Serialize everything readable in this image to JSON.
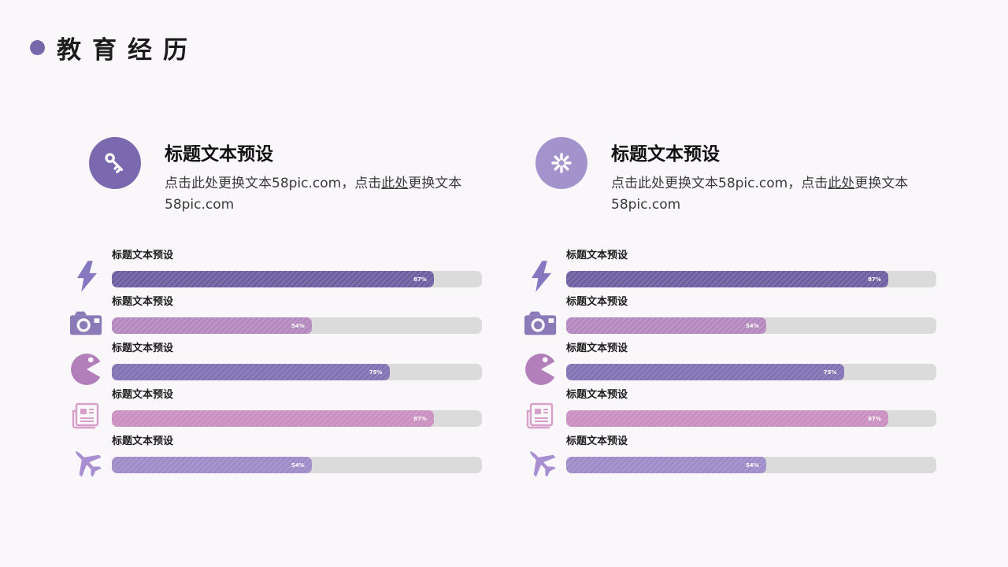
{
  "page": {
    "title": "教育经历"
  },
  "theme": {
    "background": "#faf7fa",
    "accent": "#7568ab",
    "track_color": "#dcdbdc",
    "percent_text_color": "#ffffff"
  },
  "columns": [
    {
      "header": {
        "icon": "key-icon",
        "circle_color": "#7b69af",
        "title": "标题文本预设",
        "desc_part1": "点击此处更换文本58pic.com，点击",
        "desc_link": "此处",
        "desc_part2": "更换文本58pic.com"
      },
      "bars": [
        {
          "icon": "lightning-icon",
          "label": "标题文本预设",
          "percent": 87,
          "color_a": "#6a5e9e",
          "color_b": "#7c70ad",
          "icon_color": "#8677c1"
        },
        {
          "icon": "camera-icon",
          "label": "标题文本预设",
          "percent": 54,
          "color_a": "#b287bd",
          "color_b": "#bd95c6",
          "icon_color": "#8a7bb8"
        },
        {
          "icon": "pacman-icon",
          "label": "标题文本预设",
          "percent": 75,
          "color_a": "#8072b3",
          "color_b": "#8d80bd",
          "icon_color": "#b27fba"
        },
        {
          "icon": "newspaper-icon",
          "label": "标题文本预设",
          "percent": 87,
          "color_a": "#d09ac7",
          "color_b": "#c98fc0",
          "icon_color": "#d89fc8"
        },
        {
          "icon": "plane-icon",
          "label": "标题文本预设",
          "percent": 54,
          "color_a": "#9d8bc7",
          "color_b": "#a897cf",
          "icon_color": "#a88fd2"
        }
      ]
    },
    {
      "header": {
        "icon": "spinner-icon",
        "circle_color": "#a393cd",
        "title": "标题文本预设",
        "desc_part1": "点击此处更换文本58pic.com，点击",
        "desc_link": "此处",
        "desc_part2": "更换文本58pic.com"
      },
      "bars": [
        {
          "icon": "lightning-icon",
          "label": "标题文本预设",
          "percent": 87,
          "color_a": "#6a5e9e",
          "color_b": "#7c70ad",
          "icon_color": "#8677c1"
        },
        {
          "icon": "camera-icon",
          "label": "标题文本预设",
          "percent": 54,
          "color_a": "#b287bd",
          "color_b": "#bd95c6",
          "icon_color": "#8a7bb8"
        },
        {
          "icon": "pacman-icon",
          "label": "标题文本预设",
          "percent": 75,
          "color_a": "#8072b3",
          "color_b": "#8d80bd",
          "icon_color": "#b27fba"
        },
        {
          "icon": "newspaper-icon",
          "label": "标题文本预设",
          "percent": 87,
          "color_a": "#d09ac7",
          "color_b": "#c98fc0",
          "icon_color": "#d89fc8"
        },
        {
          "icon": "plane-icon",
          "label": "标题文本预设",
          "percent": 54,
          "color_a": "#9d8bc7",
          "color_b": "#a897cf",
          "icon_color": "#a88fd2"
        }
      ]
    }
  ],
  "chart_data": [
    {
      "type": "bar",
      "title": "左栏进度条 (left column progress bars)",
      "categories": [
        "标题文本预设",
        "标题文本预设",
        "标题文本预设",
        "标题文本预设",
        "标题文本预设"
      ],
      "values": [
        87,
        54,
        75,
        87,
        54
      ],
      "unit": "%",
      "xlabel": "",
      "ylabel": "",
      "xlim": [
        0,
        100
      ],
      "legend_position": "none",
      "grid": false
    },
    {
      "type": "bar",
      "title": "右栏进度条 (right column progress bars)",
      "categories": [
        "标题文本预设",
        "标题文本预设",
        "标题文本预设",
        "标题文本预设",
        "标题文本预设"
      ],
      "values": [
        87,
        54,
        75,
        87,
        54
      ],
      "unit": "%",
      "xlabel": "",
      "ylabel": "",
      "xlim": [
        0,
        100
      ],
      "legend_position": "none",
      "grid": false
    }
  ]
}
